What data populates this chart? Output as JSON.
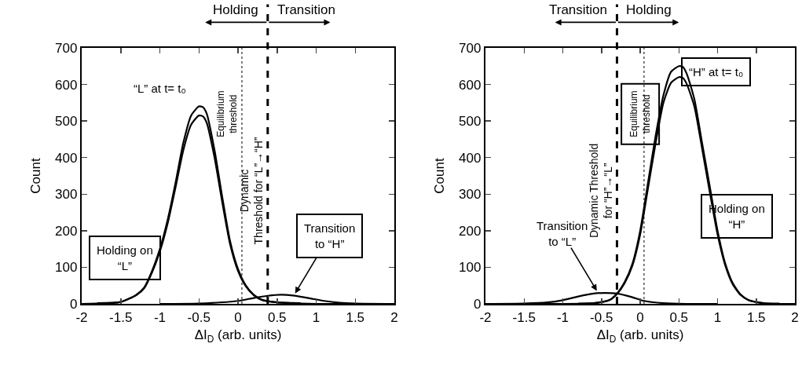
{
  "chart_data": [
    {
      "type": "line",
      "xlabel": "ΔI$_{D}$ (arb. units)",
      "ylabel": "Count",
      "xlim": [
        -2,
        2
      ],
      "ylim": [
        0,
        700
      ],
      "xticks": [
        -2,
        -1.5,
        -1,
        -0.5,
        0,
        0.5,
        1,
        1.5,
        2
      ],
      "yticks": [
        0,
        100,
        200,
        300,
        400,
        500,
        600,
        700
      ],
      "grid": false,
      "marker": "none",
      "line_style": "solid",
      "series": [
        {
          "color": "#000000",
          "x": [
            -2,
            -1.5,
            -1.3,
            -1.2,
            -1.1,
            -1.0,
            -0.9,
            -0.8,
            -0.7,
            -0.6,
            -0.5,
            -0.45,
            -0.4,
            -0.3,
            -0.2,
            -0.1,
            0,
            0.1,
            0.2,
            0.3,
            0.5,
            0.8,
            1.0,
            1.5,
            2
          ],
          "values": [
            0,
            5,
            25,
            45,
            90,
            150,
            230,
            330,
            440,
            515,
            540,
            538,
            520,
            420,
            290,
            170,
            95,
            50,
            25,
            12,
            4,
            1,
            0,
            0,
            0
          ]
        },
        {
          "color": "#000000",
          "x": [
            -1.8,
            -1.5,
            -1.3,
            -1.2,
            -1.1,
            -1.0,
            -0.9,
            -0.8,
            -0.7,
            -0.6,
            -0.5,
            -0.45,
            -0.4,
            -0.3,
            -0.2,
            -0.1,
            0,
            0.1,
            0.2,
            0.3,
            0.5,
            0.8
          ],
          "values": [
            2,
            5,
            24,
            43,
            86,
            143,
            220,
            318,
            420,
            490,
            515,
            513,
            495,
            400,
            276,
            162,
            90,
            48,
            24,
            11,
            4,
            2
          ]
        },
        {
          "color": "#000000",
          "x": [
            -1,
            -0.5,
            0,
            0.2,
            0.38,
            0.55,
            0.7,
            0.9,
            1.1,
            1.3,
            1.5,
            2
          ],
          "values": [
            0,
            1,
            8,
            16,
            22,
            25,
            23,
            16,
            8,
            3,
            1,
            0
          ]
        }
      ],
      "ref_lines": [
        {
          "axis": "x",
          "value": 0.05,
          "label": "Equilibrium threshold",
          "line_style": "dotted",
          "color": "#000000"
        },
        {
          "axis": "x",
          "value": 0.38,
          "label": "Dynamic Threshold for “L”→“H”",
          "line_style": "dashed",
          "color": "#000000"
        }
      ],
      "annotations": [
        "Holding",
        "Transition",
        "“L” at t= t₀",
        "Holding on “L”",
        {
          "text": "Transition to “H”",
          "x": 0.72,
          "y": 25
        }
      ]
    },
    {
      "type": "line",
      "xlabel": "ΔI$_{D}$ (arb. units)",
      "ylabel": "Count",
      "xlim": [
        -2,
        2
      ],
      "ylim": [
        0,
        700
      ],
      "xticks": [
        -2,
        -1.5,
        -1,
        -0.5,
        0,
        0.5,
        1,
        1.5,
        2
      ],
      "yticks": [
        0,
        100,
        200,
        300,
        400,
        500,
        600,
        700
      ],
      "grid": false,
      "marker": "none",
      "line_style": "solid",
      "series": [
        {
          "color": "#000000",
          "x": [
            -2,
            -0.6,
            -0.4,
            -0.3,
            -0.2,
            -0.1,
            0,
            0.1,
            0.2,
            0.3,
            0.4,
            0.5,
            0.55,
            0.6,
            0.7,
            0.8,
            0.9,
            1.0,
            1.1,
            1.2,
            1.3,
            1.4,
            1.6,
            2
          ],
          "values": [
            0,
            2,
            10,
            28,
            60,
            110,
            200,
            330,
            460,
            570,
            635,
            650,
            648,
            630,
            560,
            440,
            320,
            200,
            110,
            55,
            25,
            10,
            1,
            0
          ]
        },
        {
          "color": "#000000",
          "x": [
            -0.8,
            -0.6,
            -0.4,
            -0.3,
            -0.2,
            -0.1,
            0,
            0.1,
            0.2,
            0.3,
            0.4,
            0.5,
            0.55,
            0.6,
            0.7,
            0.8,
            0.9,
            1.0,
            1.1,
            1.2,
            1.3,
            1.4,
            1.6,
            1.8
          ],
          "values": [
            1,
            2,
            10,
            27,
            57,
            105,
            190,
            315,
            440,
            550,
            605,
            620,
            618,
            602,
            540,
            425,
            305,
            190,
            105,
            52,
            24,
            10,
            2,
            1
          ]
        },
        {
          "color": "#000000",
          "x": [
            -2,
            -1.5,
            -1.2,
            -1,
            -0.8,
            -0.6,
            -0.45,
            -0.3,
            -0.1,
            0.05,
            0.3,
            0.6,
            1
          ],
          "values": [
            0,
            1,
            4,
            10,
            20,
            28,
            30,
            28,
            18,
            8,
            2,
            0,
            0
          ]
        }
      ],
      "ref_lines": [
        {
          "axis": "x",
          "value": -0.3,
          "label": "Dynamic Threshold for “H”→“L”",
          "line_style": "dashed",
          "color": "#000000"
        },
        {
          "axis": "x",
          "value": 0.05,
          "label": "Equilibrium threshold",
          "line_style": "dotted",
          "color": "#000000"
        }
      ],
      "annotations": [
        "Transition",
        "Holding",
        "“H” at t= t₀",
        "Holding on “H”",
        {
          "text": "Transition to “L”",
          "x": -0.55,
          "y": 32
        }
      ]
    }
  ]
}
